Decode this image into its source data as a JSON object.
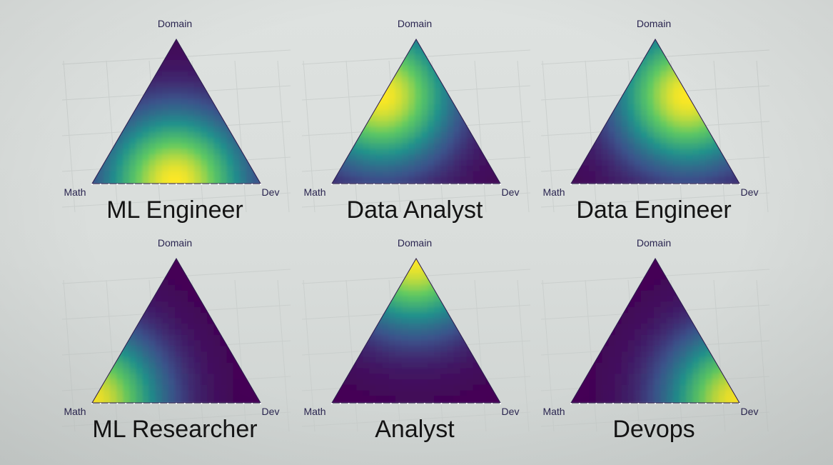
{
  "colors": {
    "viridis": [
      "#440154",
      "#3b528b",
      "#21918c",
      "#5ec962",
      "#fde725"
    ],
    "label": "#2a2550",
    "title": "#141414"
  },
  "chart_data": [
    {
      "type": "heatmap",
      "subtype": "ternary",
      "title": "ML Engineer",
      "corners": [
        "Domain",
        "Math",
        "Dev"
      ],
      "peak": {
        "Domain": 0.0,
        "Math": 0.5,
        "Dev": 0.5
      },
      "colormap": "viridis",
      "grid": true
    },
    {
      "type": "heatmap",
      "subtype": "ternary",
      "title": "Data Analyst",
      "corners": [
        "Domain",
        "Math",
        "Dev"
      ],
      "peak": {
        "Domain": 0.6,
        "Math": 0.4,
        "Dev": 0.0
      },
      "colormap": "viridis",
      "grid": true
    },
    {
      "type": "heatmap",
      "subtype": "ternary",
      "title": "Data Engineer",
      "corners": [
        "Domain",
        "Math",
        "Dev"
      ],
      "peak": {
        "Domain": 0.6,
        "Math": 0.0,
        "Dev": 0.4
      },
      "colormap": "viridis",
      "grid": true
    },
    {
      "type": "heatmap",
      "subtype": "ternary",
      "title": "ML Researcher",
      "corners": [
        "Domain",
        "Math",
        "Dev"
      ],
      "peak": {
        "Domain": 0.0,
        "Math": 1.0,
        "Dev": 0.0
      },
      "colormap": "viridis",
      "grid": true
    },
    {
      "type": "heatmap",
      "subtype": "ternary",
      "title": "Analyst",
      "corners": [
        "Domain",
        "Math",
        "Dev"
      ],
      "peak": {
        "Domain": 1.0,
        "Math": 0.0,
        "Dev": 0.0
      },
      "colormap": "viridis",
      "grid": true
    },
    {
      "type": "heatmap",
      "subtype": "ternary",
      "title": "Devops",
      "corners": [
        "Domain",
        "Math",
        "Dev"
      ],
      "peak": {
        "Domain": 0.0,
        "Math": 0.0,
        "Dev": 1.0
      },
      "colormap": "viridis",
      "grid": true
    }
  ]
}
